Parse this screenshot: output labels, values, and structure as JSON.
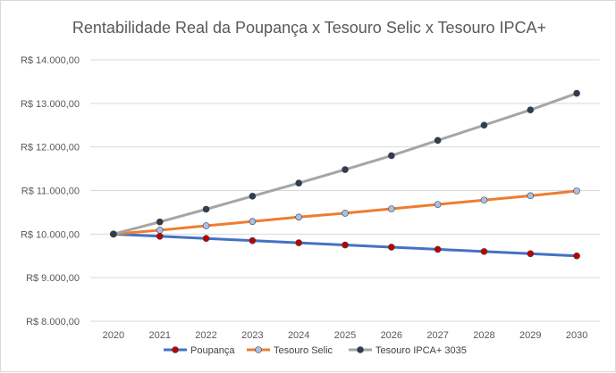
{
  "chart_data": {
    "type": "line",
    "title": "Rentabilidade Real da Poupança x Tesouro Selic x Tesouro IPCA+",
    "xlabel": "",
    "ylabel": "",
    "categories": [
      "2020",
      "2021",
      "2022",
      "2023",
      "2024",
      "2025",
      "2026",
      "2027",
      "2028",
      "2029",
      "2030"
    ],
    "ylim": [
      8000,
      14000
    ],
    "yticks": [
      8000,
      9000,
      10000,
      11000,
      12000,
      13000,
      14000
    ],
    "ytick_labels": [
      "R$ 8.000,00",
      "R$ 9.000,00",
      "R$ 10.000,00",
      "R$ 11.000,00",
      "R$ 12.000,00",
      "R$ 13.000,00",
      "R$ 14.000,00"
    ],
    "grid": "horizontal",
    "legend_position": "bottom",
    "series": [
      {
        "name": "Poupança",
        "color": "#4472c4",
        "marker_color": "#c00000",
        "values": [
          10000,
          9950,
          9900,
          9850,
          9800,
          9750,
          9700,
          9650,
          9600,
          9550,
          9500
        ]
      },
      {
        "name": "Tesouro Selic",
        "color": "#ed7d31",
        "marker_color": "#a9c0e4",
        "values": [
          10000,
          10090,
          10190,
          10290,
          10390,
          10480,
          10580,
          10680,
          10780,
          10880,
          10990
        ]
      },
      {
        "name": "Tesouro IPCA+ 3035",
        "color": "#a5a5a5",
        "marker_color": "#2e3e50",
        "values": [
          10000,
          10280,
          10570,
          10870,
          11170,
          11480,
          11800,
          12150,
          12500,
          12850,
          13230
        ]
      }
    ]
  }
}
